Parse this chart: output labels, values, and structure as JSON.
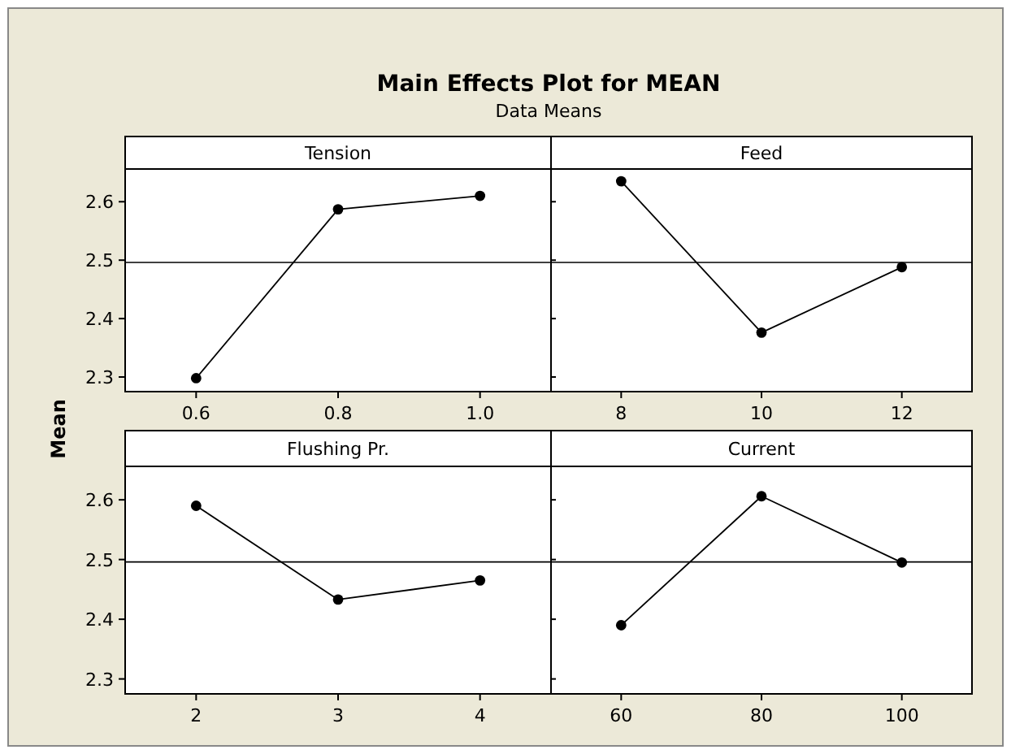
{
  "chart_data": [
    {
      "type": "line",
      "title": "Main Effects Plot for MEAN",
      "subtitle": "Data Means",
      "ylabel": "Mean",
      "xlabel": "Tension",
      "x": [
        0.6,
        0.8,
        1.0
      ],
      "values": [
        2.298,
        2.587,
        2.61
      ],
      "color": "#000000",
      "xlim": [
        0.5,
        1.1
      ],
      "xticks": [
        0.6,
        0.8,
        {
          "value": 1.0,
          "label": "1.0"
        }
      ],
      "ylim": [
        2.275,
        2.656
      ],
      "yticks": [
        2.3,
        2.4,
        2.5,
        2.6
      ],
      "marker": "circle",
      "grid": false,
      "ref_lines": [
        {
          "axis": "y",
          "value": 2.496,
          "color": "#000000"
        }
      ]
    },
    {
      "type": "line",
      "xlabel": "Feed",
      "x": [
        8,
        10,
        12
      ],
      "values": [
        2.635,
        2.376,
        2.488
      ],
      "color": "#000000",
      "xlim": [
        7,
        13
      ],
      "xticks": [
        8,
        10,
        12
      ],
      "ylim": [
        2.275,
        2.656
      ],
      "yticks": [
        2.3,
        2.4,
        2.5,
        2.6
      ],
      "tick_labels": "x",
      "marker": "circle",
      "grid": false,
      "ref_lines": [
        {
          "axis": "y",
          "value": 2.496,
          "color": "#000000"
        }
      ]
    },
    {
      "type": "line",
      "xlabel": "Flushing Pr.",
      "x": [
        2,
        3,
        4
      ],
      "values": [
        2.59,
        2.433,
        2.465
      ],
      "color": "#000000",
      "xlim": [
        1.5,
        4.5
      ],
      "xticks": [
        2,
        3,
        4
      ],
      "ylim": [
        2.275,
        2.656
      ],
      "yticks": [
        2.3,
        2.4,
        2.5,
        2.6
      ],
      "marker": "circle",
      "grid": false,
      "ref_lines": [
        {
          "axis": "y",
          "value": 2.496,
          "color": "#000000"
        }
      ]
    },
    {
      "type": "line",
      "xlabel": "Current",
      "x": [
        60,
        80,
        100
      ],
      "values": [
        2.39,
        2.606,
        2.495
      ],
      "color": "#000000",
      "xlim": [
        50,
        110
      ],
      "xticks": [
        60,
        80,
        100
      ],
      "ylim": [
        2.275,
        2.656
      ],
      "yticks": [
        2.3,
        2.4,
        2.5,
        2.6
      ],
      "tick_labels": "x",
      "marker": "circle",
      "grid": false,
      "ref_lines": [
        {
          "axis": "y",
          "value": 2.496,
          "color": "#000000"
        }
      ]
    }
  ]
}
